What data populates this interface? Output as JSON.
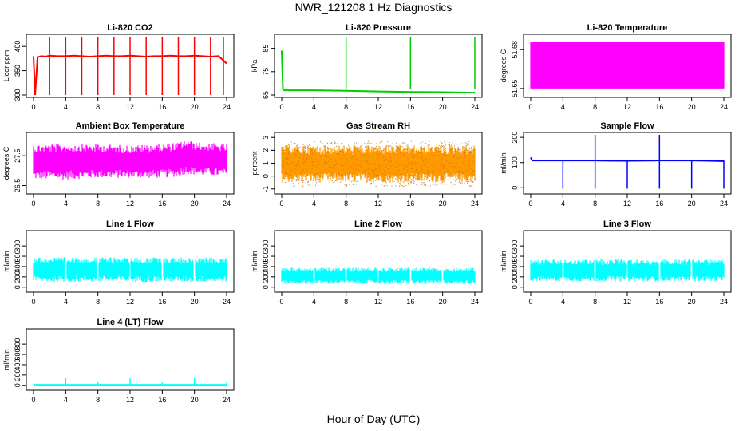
{
  "figure": {
    "title": "NWR_121208  1 Hz Diagnostics",
    "xlabel": "Hour of Day (UTC)"
  },
  "chart_data": [
    {
      "type": "line",
      "title": "Li-820 CO2",
      "xlabel": "",
      "ylabel": "Licor ppm",
      "color": "#ff0000",
      "xlim": [
        0,
        24
      ],
      "xticks": [
        0,
        4,
        8,
        12,
        16,
        20,
        24
      ],
      "ylim": [
        300,
        420
      ],
      "yticks": [
        300,
        350,
        400
      ],
      "ytick_labels": [
        "300",
        "350",
        "400"
      ],
      "grid": false,
      "legend": "none",
      "series": [
        {
          "x": [
            0.0,
            0.2,
            0.5,
            1.0,
            1.5,
            2.0,
            3.0,
            4.0,
            5.0,
            6.0,
            7.0,
            8.0,
            9.0,
            10.0,
            11.0,
            12.0,
            13.0,
            14.0,
            15.0,
            16.0,
            17.0,
            18.0,
            19.0,
            20.0,
            21.0,
            22.0,
            23.0,
            24.0
          ],
          "y": [
            380,
            300,
            378,
            380,
            379,
            381,
            380,
            380,
            381,
            380,
            379,
            380,
            381,
            380,
            380,
            381,
            380,
            379,
            380,
            380,
            381,
            380,
            380,
            381,
            380,
            379,
            380,
            365
          ]
        }
      ],
      "spikes_up": [
        2,
        4,
        6,
        8,
        10,
        12,
        14,
        16,
        18,
        20,
        22,
        23.6
      ],
      "spikes_down": [
        8,
        16
      ]
    },
    {
      "type": "line",
      "title": "Li-820 Pressure",
      "xlabel": "",
      "ylabel": "kPa",
      "color": "#00cc00",
      "xlim": [
        0,
        24
      ],
      "xticks": [
        0,
        4,
        8,
        12,
        16,
        20,
        24
      ],
      "ylim": [
        65,
        90
      ],
      "yticks": [
        65,
        75,
        85
      ],
      "ytick_labels": [
        "65",
        "75",
        "85"
      ],
      "grid": false,
      "legend": "none",
      "series": [
        {
          "x": [
            0.0,
            0.15,
            0.3,
            4,
            8,
            12,
            16,
            20,
            24
          ],
          "y": [
            84,
            67.5,
            67.0,
            67.0,
            66.8,
            66.5,
            66.3,
            66.2,
            66.0
          ]
        }
      ],
      "spikes_up": [
        8,
        16,
        24
      ]
    },
    {
      "type": "area",
      "title": "Li-820 Temperature",
      "xlabel": "",
      "ylabel": "degrees C",
      "color": "#ff00ff",
      "xlim": [
        0,
        24
      ],
      "xticks": [
        0,
        4,
        8,
        12,
        16,
        20,
        24
      ],
      "ylim": [
        51.645,
        51.69
      ],
      "yticks": [
        51.65,
        51.68
      ],
      "ytick_labels": [
        "51.65",
        "51.68"
      ],
      "grid": false,
      "legend": "none",
      "band": {
        "x": [
          0,
          24
        ],
        "low": 51.65,
        "high": 51.686
      }
    },
    {
      "type": "line",
      "title": "Ambient Box Temperature",
      "xlabel": "",
      "ylabel": "degrees C",
      "color": "#ff00ff",
      "xlim": [
        0,
        24
      ],
      "xticks": [
        0,
        4,
        8,
        12,
        16,
        20,
        24
      ],
      "ylim": [
        26.3,
        28.2
      ],
      "yticks": [
        26.5,
        27.5
      ],
      "ytick_labels": [
        "26.5",
        "27.5"
      ],
      "grid": false,
      "legend": "none",
      "band": {
        "x": [
          0,
          4,
          8,
          12,
          16,
          18,
          19,
          20,
          24
        ],
        "low": [
          26.7,
          26.7,
          26.75,
          26.75,
          26.75,
          26.8,
          26.9,
          26.85,
          26.8
        ],
        "high": [
          27.9,
          27.9,
          27.9,
          27.85,
          27.9,
          27.95,
          28.05,
          27.95,
          27.9
        ]
      }
    },
    {
      "type": "scatter",
      "title": "Gas Stream RH",
      "xlabel": "",
      "ylabel": "percent",
      "color": "#ff9900",
      "xlim": [
        0,
        24
      ],
      "xticks": [
        0,
        4,
        8,
        12,
        16,
        20,
        24
      ],
      "ylim": [
        -1.2,
        3.2
      ],
      "yticks": [
        -1,
        0,
        1,
        2,
        3
      ],
      "ytick_labels": [
        "-1",
        "0",
        "1",
        "2",
        "3"
      ],
      "grid": false,
      "legend": "none",
      "band": {
        "x": [
          0,
          24
        ],
        "low": -0.5,
        "high": 2.4
      }
    },
    {
      "type": "line",
      "title": "Sample Flow",
      "xlabel": "",
      "ylabel": "ml/min",
      "color": "#0000ff",
      "xlim": [
        0,
        24
      ],
      "xticks": [
        0,
        4,
        8,
        12,
        16,
        20,
        24
      ],
      "ylim": [
        -15,
        210
      ],
      "yticks": [
        0,
        100,
        200
      ],
      "ytick_labels": [
        "0",
        "100",
        "200"
      ],
      "grid": false,
      "legend": "none",
      "series": [
        {
          "x": [
            0,
            0.2,
            4,
            8,
            12,
            16,
            20,
            24
          ],
          "y": [
            120,
            108,
            108,
            108,
            107,
            108,
            108,
            106
          ]
        }
      ],
      "spikes_down": [
        4,
        8,
        12,
        16,
        20,
        24
      ],
      "spikes_up": [
        8,
        16
      ]
    },
    {
      "type": "area",
      "title": "Line 1 Flow",
      "xlabel": "",
      "ylabel": "ml/min",
      "color": "#00ffff",
      "xlim": [
        0,
        24
      ],
      "xticks": [
        0,
        4,
        8,
        12,
        16,
        20,
        24
      ],
      "ylim": [
        -50,
        1050
      ],
      "yticks": [
        0,
        200,
        400,
        600,
        800
      ],
      "ytick_labels": [
        "0",
        "200",
        "400",
        "600",
        "800"
      ],
      "grid": false,
      "legend": "none",
      "band": {
        "x": [
          0,
          24
        ],
        "low": 100,
        "high": 580
      },
      "gaps": [
        4,
        8,
        12,
        16,
        20
      ]
    },
    {
      "type": "area",
      "title": "Line 2 Flow",
      "xlabel": "",
      "ylabel": "ml/min",
      "color": "#00ffff",
      "xlim": [
        0,
        24
      ],
      "xticks": [
        0,
        4,
        8,
        12,
        16,
        20,
        24
      ],
      "ylim": [
        -50,
        1050
      ],
      "yticks": [
        0,
        200,
        400,
        600,
        800
      ],
      "ytick_labels": [
        "0",
        "200",
        "400",
        "600",
        "800"
      ],
      "grid": false,
      "legend": "none",
      "band": {
        "x": [
          0,
          24
        ],
        "low": 60,
        "high": 380
      },
      "gaps": [
        4,
        8,
        12,
        16,
        20
      ]
    },
    {
      "type": "area",
      "title": "Line 3 Flow",
      "xlabel": "",
      "ylabel": "ml/min",
      "color": "#00ffff",
      "xlim": [
        0,
        24
      ],
      "xticks": [
        0,
        4,
        8,
        12,
        16,
        20,
        24
      ],
      "ylim": [
        -50,
        1050
      ],
      "yticks": [
        0,
        200,
        400,
        600,
        800
      ],
      "ytick_labels": [
        "0",
        "200",
        "400",
        "600",
        "800"
      ],
      "grid": false,
      "legend": "none",
      "band": {
        "x": [
          0,
          24
        ],
        "low": 110,
        "high": 540
      },
      "gaps": [
        4,
        8,
        12,
        16,
        20
      ]
    },
    {
      "type": "line",
      "title": "Line 4 (LT) Flow",
      "xlabel": "",
      "ylabel": "ml/min",
      "color": "#00ffff",
      "xlim": [
        0,
        24
      ],
      "xticks": [
        0,
        4,
        8,
        12,
        16,
        20,
        24
      ],
      "ylim": [
        -50,
        1050
      ],
      "yticks": [
        0,
        200,
        400,
        600,
        800
      ],
      "ytick_labels": [
        "0",
        "200",
        "400",
        "600",
        "800"
      ],
      "grid": false,
      "legend": "none",
      "series": [
        {
          "x": [
            0,
            24
          ],
          "y": [
            10,
            10
          ]
        }
      ],
      "spikes_up": [
        4,
        8,
        12,
        16,
        20,
        24
      ],
      "spike_values": [
        150,
        60,
        150,
        60,
        150,
        60
      ]
    }
  ]
}
